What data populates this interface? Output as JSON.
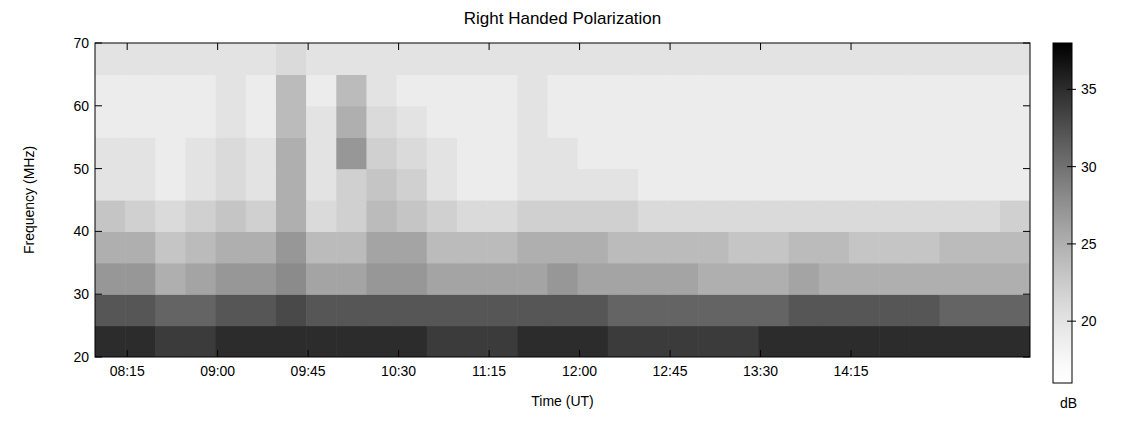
{
  "chart_data": {
    "type": "heatmap",
    "title": "Right Handed Polarization",
    "x_label": "Time (UT)",
    "y_label": "Frequency (MHz)",
    "x_edges": [
      479,
      494,
      509,
      524,
      539,
      554,
      569,
      584,
      599,
      614,
      629,
      644,
      659,
      674,
      689,
      704,
      719,
      734,
      749,
      764,
      779,
      794,
      809,
      824,
      839,
      854,
      869,
      884,
      899,
      914,
      929,
      944
    ],
    "y_edges": [
      20,
      25,
      30,
      35,
      40,
      45,
      50,
      55,
      60,
      65,
      70
    ],
    "values": [
      [
        35,
        35,
        34,
        34,
        35,
        35,
        35,
        35,
        35,
        35,
        35,
        34,
        34,
        34,
        35,
        35,
        35,
        34,
        34,
        34,
        34,
        34,
        35,
        35,
        35,
        35,
        35,
        35,
        35,
        35,
        35
      ],
      [
        32,
        32,
        31,
        31,
        32,
        32,
        33,
        32,
        32,
        32,
        32,
        32,
        32,
        32,
        32,
        32,
        32,
        31,
        31,
        31,
        31,
        31,
        31,
        32,
        32,
        32,
        32,
        32,
        31,
        31,
        31
      ],
      [
        27,
        27,
        25,
        26,
        27,
        27,
        28,
        26,
        26,
        27,
        27,
        26,
        26,
        26,
        26,
        27,
        26,
        26,
        26,
        26,
        25,
        25,
        25,
        26,
        25,
        25,
        25,
        25,
        25,
        25,
        25
      ],
      [
        25,
        25,
        23,
        24,
        25,
        25,
        27,
        24,
        24,
        26,
        26,
        24,
        24,
        24,
        25,
        25,
        25,
        24,
        24,
        24,
        24,
        23,
        23,
        24,
        24,
        23,
        23,
        23,
        24,
        24,
        24
      ],
      [
        23,
        22,
        21,
        22,
        23,
        22,
        25,
        21,
        22,
        24,
        23,
        22,
        21,
        21,
        22,
        22,
        22,
        22,
        21,
        21,
        21,
        21,
        21,
        21,
        21,
        21,
        21,
        21,
        21,
        21,
        22
      ],
      [
        20,
        20,
        19,
        20,
        21,
        20,
        25,
        20,
        22,
        23,
        22,
        20,
        19,
        19,
        20,
        20,
        20,
        20,
        19,
        19,
        19,
        19,
        19,
        19,
        19,
        19,
        19,
        19,
        19,
        19,
        19
      ],
      [
        20,
        20,
        19,
        20,
        21,
        20,
        25,
        20,
        27,
        22,
        21,
        20,
        19,
        19,
        20,
        20,
        19,
        19,
        19,
        19,
        19,
        19,
        19,
        19,
        19,
        19,
        19,
        19,
        19,
        19,
        19
      ],
      [
        19,
        19,
        19,
        19,
        20,
        19,
        24,
        20,
        25,
        21,
        20,
        19,
        19,
        19,
        20,
        19,
        19,
        19,
        19,
        19,
        19,
        19,
        19,
        19,
        19,
        19,
        19,
        19,
        19,
        19,
        19
      ],
      [
        19,
        19,
        19,
        19,
        20,
        19,
        24,
        19,
        24,
        20,
        19,
        19,
        19,
        19,
        20,
        19,
        19,
        19,
        19,
        19,
        19,
        19,
        19,
        19,
        19,
        19,
        19,
        19,
        19,
        19,
        19
      ],
      [
        20,
        20,
        20,
        20,
        20,
        20,
        21,
        20,
        20,
        20,
        20,
        20,
        20,
        20,
        20,
        20,
        20,
        20,
        20,
        20,
        20,
        20,
        20,
        20,
        20,
        20,
        20,
        20,
        20,
        20,
        20
      ]
    ],
    "xlim": [
      479,
      944
    ],
    "ylim": [
      20,
      70
    ],
    "xticks": [
      {
        "value": 495,
        "label": "08:15"
      },
      {
        "value": 540,
        "label": "09:00"
      },
      {
        "value": 585,
        "label": "09:45"
      },
      {
        "value": 630,
        "label": "10:30"
      },
      {
        "value": 675,
        "label": "11:15"
      },
      {
        "value": 720,
        "label": "12:00"
      },
      {
        "value": 765,
        "label": "12:45"
      },
      {
        "value": 810,
        "label": "13:30"
      },
      {
        "value": 855,
        "label": "14:15"
      }
    ],
    "yticks": [
      20,
      30,
      40,
      50,
      60,
      70
    ],
    "zlim": [
      16,
      38
    ],
    "zticks": [
      20,
      25,
      30,
      35
    ],
    "zlabel": "dB",
    "grid": false
  }
}
